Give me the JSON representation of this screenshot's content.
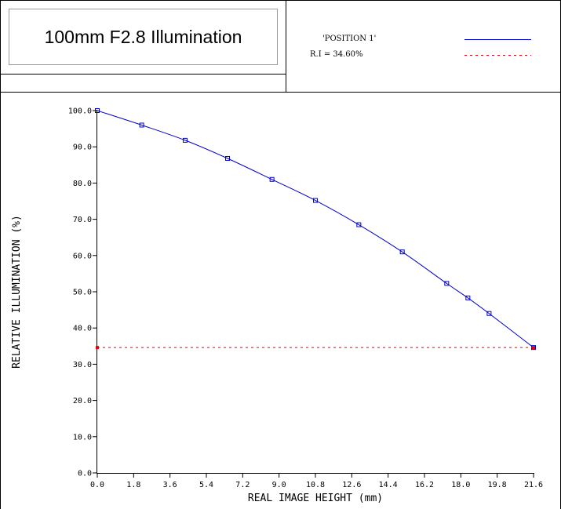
{
  "header": {
    "title": "100mm F2.8 Illumination",
    "legend": [
      {
        "label": "'POSITION 1'",
        "style": "solid",
        "color": "#0000cc"
      },
      {
        "label": "R.I = 34.60%",
        "style": "dotted",
        "color": "#e8000f"
      }
    ]
  },
  "chart_data": {
    "type": "line",
    "title": "",
    "xlabel": "REAL IMAGE HEIGHT (mm)",
    "ylabel": "RELATIVE ILLUMINATION (%)",
    "xlim": [
      0,
      21.6
    ],
    "ylim": [
      0,
      100
    ],
    "x_ticks": [
      "0.0",
      "1.8",
      "3.6",
      "5.4",
      "7.2",
      "9.0",
      "10.8",
      "12.6",
      "14.4",
      "16.2",
      "18.0",
      "19.8",
      "21.6"
    ],
    "y_ticks": [
      "0.0",
      "10.0",
      "20.0",
      "30.0",
      "40.0",
      "50.0",
      "60.0",
      "70.0",
      "80.0",
      "90.0",
      "100.0"
    ],
    "grid": false,
    "series": [
      {
        "name": "'POSITION 1'",
        "color": "#0000cc",
        "line": "solid",
        "marker": "square",
        "x": [
          0.0,
          2.2,
          4.35,
          6.45,
          8.65,
          10.8,
          12.95,
          15.1,
          17.3,
          18.35,
          19.4,
          21.6
        ],
        "y": [
          100.0,
          96.0,
          91.8,
          86.8,
          81.0,
          75.2,
          68.5,
          61.0,
          52.3,
          48.3,
          44.0,
          34.6
        ]
      },
      {
        "name": "R.I = 34.60%",
        "color": "#e8000f",
        "line": "dotted",
        "marker": "none",
        "x": [
          0.0,
          21.6
        ],
        "y": [
          34.6,
          34.6
        ]
      }
    ]
  }
}
